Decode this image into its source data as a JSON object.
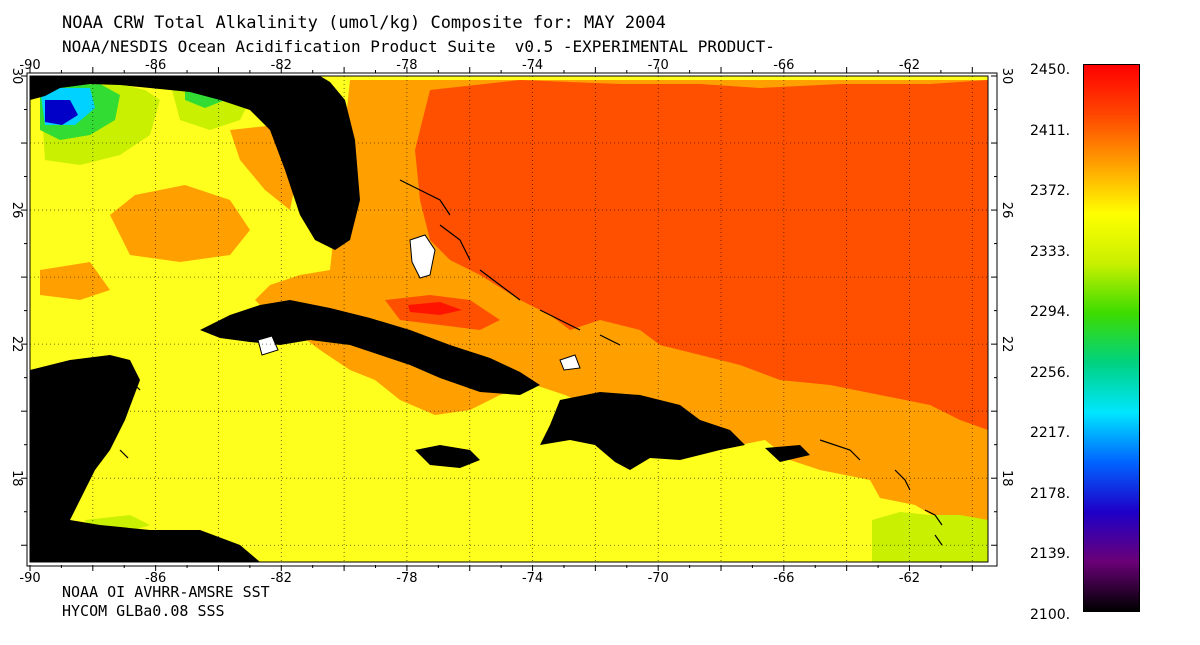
{
  "title": "NOAA CRW Total Alkalinity (umol/kg) Composite for: MAY 2004",
  "subtitle": "NOAA/NESDIS Ocean Acidification Product Suite  v0.5 -EXPERIMENTAL PRODUCT-",
  "credits": [
    "NOAA OI AVHRR-AMSRE SST",
    "HYCOM GLBa0.08 SSS"
  ],
  "map": {
    "lon_ticks": [
      "-90",
      "-86",
      "-82",
      "-78",
      "-74",
      "-70",
      "-66",
      "-62"
    ],
    "lat_ticks": [
      "30",
      "26",
      "22",
      "18"
    ],
    "lon_range": [
      -90,
      -59.5
    ],
    "lat_range": [
      15.5,
      30
    ]
  },
  "colorbar": {
    "labels": [
      "2450.",
      "2411.",
      "2372.",
      "2333.",
      "2294.",
      "2256.",
      "2217.",
      "2178.",
      "2139.",
      "2100."
    ],
    "range": [
      2100,
      2450
    ],
    "colors": [
      "#000000",
      "#6a0078",
      "#1e00c8",
      "#0064ff",
      "#00e6ff",
      "#00d280",
      "#3cdc00",
      "#c8f000",
      "#ffff00",
      "#ffa000",
      "#ff4600",
      "#ff0000"
    ]
  },
  "palette": {
    "land": "#000000",
    "ocean_default": "#ffff1e",
    "orange": "#ffa000",
    "dark_orange": "#ff5000",
    "red": "#ff1400",
    "yellow_green": "#c8f000",
    "green": "#32dc32",
    "cyan": "#00d2ff",
    "blue": "#0000c8"
  }
}
